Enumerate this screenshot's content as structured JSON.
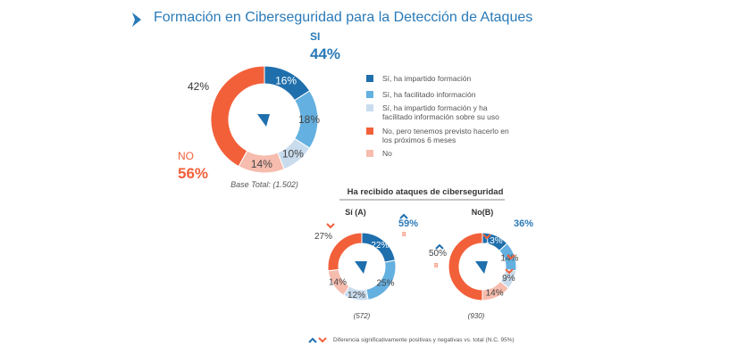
{
  "title": "Formación en Ciberseguridad para la Detección de Ataques",
  "colors": {
    "accent": "#2a7ab8",
    "si_dark": "#1f6fad",
    "si_mid": "#64b0e0",
    "si_light": "#c9dcee",
    "no_plan": "#f2603a",
    "no": "#f6bcae"
  },
  "legend": [
    "Sí, ha impartido formación",
    "Sí, ha facilitado información",
    "Sí, ha impartido formación y ha facilitado información sobre su uso",
    "No, pero tenemos previsto hacerlo en los próximos 6 meses",
    "No"
  ],
  "subtitle": "Ha recibido ataques de ciberseguridad",
  "footnote": "Diferencia significativamente  positivas y negativas vs. total (N.C. 95%)",
  "chart_data": [
    {
      "type": "pie",
      "variant": "donut",
      "name": "Total",
      "base": "Base Total: (1.502)",
      "categories": [
        "Sí, ha impartido formación",
        "Sí, ha facilitado información",
        "Sí, ha impartido formación y ha facilitado información sobre su uso",
        "No, pero tenemos previsto hacerlo en los próximos 6 meses",
        "No"
      ],
      "values": [
        16,
        18,
        10,
        42,
        14
      ],
      "labels": [
        "16%",
        "18%",
        "10%",
        "42%",
        "14%"
      ],
      "si_label": "SI",
      "si_total": "44%",
      "no_label": "NO",
      "no_total": "56%"
    },
    {
      "type": "pie",
      "variant": "donut",
      "name": "Sí (A)",
      "base": "(572)",
      "values": [
        22,
        25,
        12,
        27,
        14
      ],
      "labels": [
        "22%",
        "25%",
        "12%",
        "27%",
        "14%"
      ],
      "si_total": "59%",
      "sig_letter": "B"
    },
    {
      "type": "pie",
      "variant": "donut",
      "name": "No(B)",
      "base": "(930)",
      "values": [
        13,
        14,
        9,
        50,
        14
      ],
      "labels": [
        "13%",
        "14%",
        "9%",
        "50%",
        "14%"
      ],
      "si_total": "36%",
      "sig_letter": "B"
    }
  ]
}
